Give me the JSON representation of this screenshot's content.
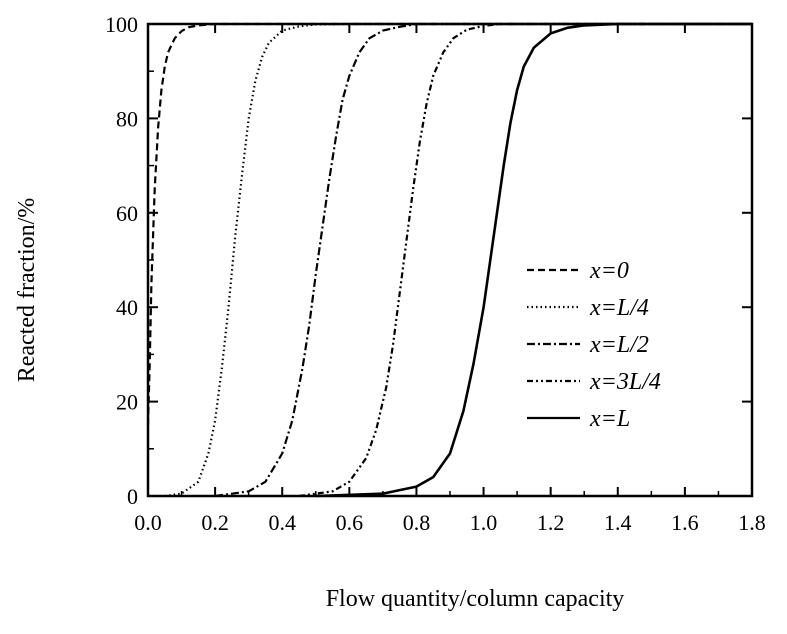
{
  "chart_data": {
    "type": "line",
    "xlabel": "Flow quantity/column capacity",
    "ylabel": "Reacted fraction/%",
    "xlim": [
      0,
      1.8
    ],
    "ylim": [
      0,
      100
    ],
    "xticks": [
      0.0,
      0.2,
      0.4,
      0.6,
      0.8,
      1.0,
      1.2,
      1.4,
      1.6,
      1.8
    ],
    "xtick_labels": [
      "0.0",
      "0.2",
      "0.4",
      "0.6",
      "0.8",
      "1.0",
      "1.2",
      "1.4",
      "1.6",
      "1.8"
    ],
    "yticks": [
      0,
      20,
      40,
      60,
      80,
      100
    ],
    "ytick_labels": [
      "0",
      "20",
      "40",
      "60",
      "80",
      "100"
    ],
    "grid": false,
    "legend_position": "right-middle",
    "series": [
      {
        "name": "x=0",
        "line_style": "dashed",
        "x": [
          0.0,
          0.005,
          0.01,
          0.02,
          0.03,
          0.04,
          0.05,
          0.06,
          0.08,
          0.1,
          0.12,
          0.15,
          0.2,
          0.3,
          1.8
        ],
        "y": [
          15,
          28,
          45,
          65,
          78,
          86,
          91,
          94,
          97,
          98.5,
          99.3,
          99.7,
          100,
          100,
          100
        ]
      },
      {
        "name": "x=L/4",
        "line_style": "dotted",
        "x": [
          0.05,
          0.1,
          0.15,
          0.18,
          0.2,
          0.22,
          0.24,
          0.26,
          0.28,
          0.3,
          0.32,
          0.34,
          0.36,
          0.4,
          0.45,
          0.5,
          0.6,
          1.8
        ],
        "y": [
          0,
          0.5,
          3,
          9,
          16,
          27,
          40,
          55,
          68,
          80,
          88,
          93,
          96,
          98.6,
          99.5,
          99.9,
          100,
          100
        ]
      },
      {
        "name": "x=L/2",
        "line_style": "dash-dot",
        "x": [
          0.2,
          0.3,
          0.35,
          0.4,
          0.43,
          0.46,
          0.48,
          0.5,
          0.52,
          0.54,
          0.56,
          0.58,
          0.6,
          0.63,
          0.66,
          0.7,
          0.75,
          0.8,
          1.8
        ],
        "y": [
          0,
          1,
          3,
          9,
          16,
          27,
          36,
          47,
          57,
          67,
          76,
          84,
          89,
          94,
          97,
          98.6,
          99.4,
          100,
          100
        ]
      },
      {
        "name": "x=3L/4",
        "line_style": "dash-dot-dot",
        "x": [
          0.45,
          0.55,
          0.6,
          0.65,
          0.68,
          0.71,
          0.73,
          0.75,
          0.77,
          0.79,
          0.81,
          0.83,
          0.85,
          0.88,
          0.91,
          0.95,
          1.0,
          1.05,
          1.8
        ],
        "y": [
          0,
          1,
          3,
          8,
          14,
          23,
          32,
          43,
          54,
          65,
          75,
          83,
          89,
          94,
          97,
          98.8,
          99.6,
          100,
          100
        ]
      },
      {
        "name": "x=L",
        "line_style": "solid",
        "x": [
          0.5,
          0.7,
          0.8,
          0.85,
          0.9,
          0.94,
          0.97,
          1.0,
          1.02,
          1.04,
          1.06,
          1.08,
          1.1,
          1.12,
          1.15,
          1.2,
          1.25,
          1.3,
          1.4,
          1.5,
          1.8
        ],
        "y": [
          0,
          0.5,
          2,
          4,
          9,
          18,
          28,
          40,
          50,
          60,
          70,
          79,
          86,
          91,
          95,
          98,
          99.2,
          99.7,
          100,
          100,
          100
        ]
      }
    ]
  }
}
